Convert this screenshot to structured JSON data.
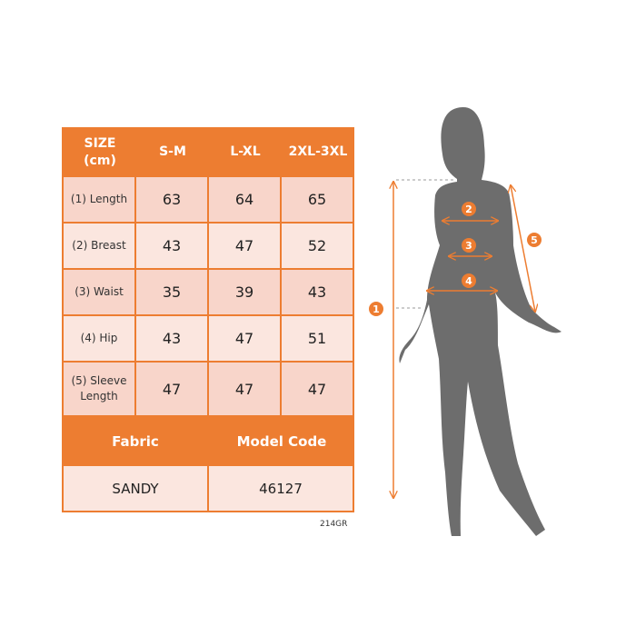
{
  "table": {
    "header": [
      "SIZE\n(cm)",
      "S-M",
      "L-XL",
      "2XL-3XL"
    ],
    "header_line1": "SIZE",
    "header_line2": "(cm)",
    "rows": [
      {
        "label": "(1) Length",
        "values": [
          "63",
          "64",
          "65"
        ]
      },
      {
        "label": "(2) Breast",
        "values": [
          "43",
          "47",
          "52"
        ]
      },
      {
        "label": "(3) Waist",
        "values": [
          "35",
          "39",
          "43"
        ]
      },
      {
        "label": "(4) Hip",
        "values": [
          "43",
          "47",
          "51"
        ]
      },
      {
        "label": "(5) Sleeve Length",
        "values": [
          "47",
          "47",
          "47"
        ]
      }
    ],
    "sleeve_line1": "(5) Sleeve",
    "sleeve_line2": "Length",
    "fabric_label": "Fabric",
    "model_code_label": "Model Code",
    "fabric_value": "SANDY",
    "model_code_value": "46127"
  },
  "product_code": "214GR",
  "figure": {
    "markers": [
      "1",
      "2",
      "3",
      "4",
      "5"
    ]
  },
  "colors": {
    "accent": "#ed7d31",
    "row_dark": "#f8d5ca",
    "row_light": "#fbe6df",
    "silhouette": "#6d6d6d"
  }
}
